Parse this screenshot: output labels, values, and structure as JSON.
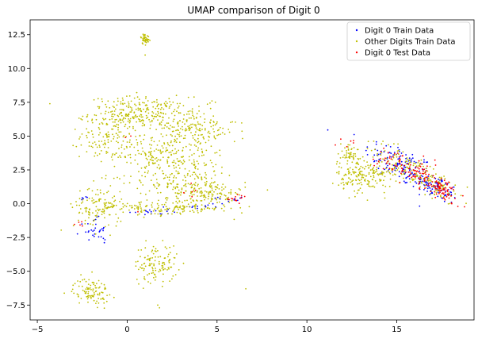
{
  "chart_data": {
    "type": "scatter",
    "title": "UMAP comparison of Digit 0",
    "xlabel": "",
    "ylabel": "",
    "xlim": [
      -5.4,
      19.3
    ],
    "ylim": [
      -8.6,
      13.6
    ],
    "x_ticks": [
      -5,
      0,
      5,
      10,
      15
    ],
    "y_ticks": [
      -7.5,
      -5.0,
      -2.5,
      0.0,
      2.5,
      5.0,
      7.5,
      10.0,
      12.5
    ],
    "x_tick_labels": [
      "−5",
      "0",
      "5",
      "10",
      "15"
    ],
    "y_tick_labels": [
      "−7.5",
      "−5.0",
      "−2.5",
      "0.0",
      "2.5",
      "5.0",
      "7.5",
      "10.0",
      "12.5"
    ],
    "grid": false,
    "legend_position": "top-right",
    "series": [
      {
        "name": "Digit 0 Train Data",
        "color": "#0000ff",
        "marker": "dot",
        "clusters": [
          {
            "cx": 15.2,
            "cy": 2.9,
            "sx": 1.0,
            "sy": 0.7,
            "n": 130,
            "tilt": -0.55
          },
          {
            "cx": 17.2,
            "cy": 1.2,
            "sx": 0.6,
            "sy": 0.45,
            "n": 90,
            "tilt": -0.55
          },
          {
            "cx": -1.9,
            "cy": -1.9,
            "sx": 0.35,
            "sy": 0.4,
            "n": 25,
            "tilt": 0
          },
          {
            "cx": -1.4,
            "cy": -2.6,
            "sx": 0.2,
            "sy": 0.15,
            "n": 6,
            "tilt": 0
          },
          {
            "cx": 1.2,
            "cy": -0.6,
            "sx": 0.6,
            "sy": 0.15,
            "n": 18,
            "tilt": 0
          },
          {
            "cx": 4.5,
            "cy": -0.2,
            "sx": 0.5,
            "sy": 0.2,
            "n": 12,
            "tilt": 0
          },
          {
            "cx": 5.9,
            "cy": 0.4,
            "sx": 0.4,
            "sy": 0.15,
            "n": 10,
            "tilt": 0
          },
          {
            "cx": -2.3,
            "cy": 0.4,
            "sx": 0.2,
            "sy": 0.2,
            "n": 5,
            "tilt": 0
          }
        ]
      },
      {
        "name": "Other Digits Train Data",
        "color": "#bfbf00",
        "marker": "dot",
        "clusters": [
          {
            "cx": 0.7,
            "cy": 6.7,
            "sx": 1.4,
            "sy": 0.6,
            "n": 260,
            "tilt": 0
          },
          {
            "cx": -1.0,
            "cy": 5.0,
            "sx": 0.8,
            "sy": 0.8,
            "n": 120,
            "tilt": 0
          },
          {
            "cx": 3.5,
            "cy": 5.4,
            "sx": 1.3,
            "sy": 0.9,
            "n": 200,
            "tilt": 0
          },
          {
            "cx": 1.5,
            "cy": 3.7,
            "sx": 1.2,
            "sy": 0.6,
            "n": 120,
            "tilt": 0
          },
          {
            "cx": 3.0,
            "cy": 2.0,
            "sx": 1.4,
            "sy": 0.9,
            "n": 200,
            "tilt": 0
          },
          {
            "cx": 4.6,
            "cy": 0.8,
            "sx": 1.0,
            "sy": 0.5,
            "n": 120,
            "tilt": 0
          },
          {
            "cx": 1.8,
            "cy": -0.3,
            "sx": 2.0,
            "sy": 0.3,
            "n": 160,
            "tilt": 0
          },
          {
            "cx": -1.6,
            "cy": -0.3,
            "sx": 0.7,
            "sy": 0.9,
            "n": 110,
            "tilt": 0
          },
          {
            "cx": 1.6,
            "cy": -4.4,
            "sx": 0.6,
            "sy": 0.7,
            "n": 120,
            "tilt": 0
          },
          {
            "cx": -2.0,
            "cy": -6.5,
            "sx": 0.5,
            "sy": 0.5,
            "n": 100,
            "tilt": 0
          },
          {
            "cx": 1.0,
            "cy": 12.2,
            "sx": 0.12,
            "sy": 0.2,
            "n": 40,
            "tilt": 0
          },
          {
            "cx": 13.3,
            "cy": 2.0,
            "sx": 0.8,
            "sy": 0.6,
            "n": 170,
            "tilt": 0
          },
          {
            "cx": 12.4,
            "cy": 3.5,
            "sx": 0.4,
            "sy": 0.5,
            "n": 60,
            "tilt": 0
          },
          {
            "cx": 15.6,
            "cy": 2.7,
            "sx": 1.2,
            "sy": 0.6,
            "n": 120,
            "tilt": -0.55
          },
          {
            "cx": 17.3,
            "cy": 1.3,
            "sx": 0.6,
            "sy": 0.5,
            "n": 60,
            "tilt": -0.55
          }
        ],
        "extra_points": [
          [
            -4.3,
            7.4
          ],
          [
            6.6,
            -6.3
          ],
          [
            1.0,
            11.0
          ],
          [
            1.7,
            -7.5
          ],
          [
            1.8,
            -7.7
          ]
        ]
      },
      {
        "name": "Digit 0 Test Data",
        "color": "#ff0000",
        "marker": "dot",
        "clusters": [
          {
            "cx": 15.8,
            "cy": 2.5,
            "sx": 1.0,
            "sy": 0.5,
            "n": 110,
            "tilt": -0.55
          },
          {
            "cx": 17.5,
            "cy": 1.0,
            "sx": 0.5,
            "sy": 0.4,
            "n": 70,
            "tilt": -0.55
          },
          {
            "cx": 6.1,
            "cy": 0.4,
            "sx": 0.35,
            "sy": 0.15,
            "n": 14,
            "tilt": 0
          },
          {
            "cx": 3.6,
            "cy": 1.0,
            "sx": 0.2,
            "sy": 0.3,
            "n": 5,
            "tilt": 0
          },
          {
            "cx": -2.5,
            "cy": -1.6,
            "sx": 0.2,
            "sy": 0.2,
            "n": 5,
            "tilt": 0
          },
          {
            "cx": 12.2,
            "cy": 4.3,
            "sx": 0.2,
            "sy": 0.2,
            "n": 5,
            "tilt": 0
          }
        ],
        "extra_points": [
          [
            0.2,
            5.0
          ],
          [
            -0.1,
            4.9
          ],
          [
            0.6,
            -0.6
          ]
        ]
      }
    ]
  }
}
